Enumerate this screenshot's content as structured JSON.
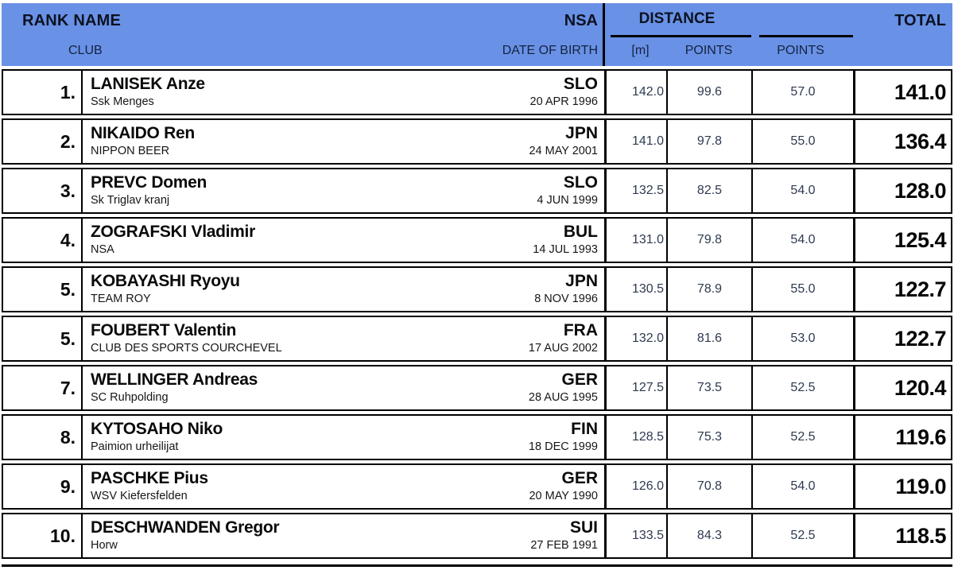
{
  "colors": {
    "header_bg": "#6991E6",
    "border": "#000000"
  },
  "header": {
    "rank_label": "RANK",
    "name_label": "NAME",
    "club_label": "CLUB",
    "nsa_label": "NSA",
    "dob_label": "DATE OF BIRTH",
    "distance_group_label": "DISTANCE",
    "distance_m_label": "[m]",
    "distance_points_label": "POINTS",
    "points2_label": "POINTS",
    "total_label": "TOTAL"
  },
  "rows": [
    {
      "rank": "1.",
      "name": "LANISEK Anze",
      "club": "Ssk Menges",
      "nsa": "SLO",
      "dob": "20 APR 1996",
      "m": "142.0",
      "pts1": "99.6",
      "pts2": "57.0",
      "total": "141.0"
    },
    {
      "rank": "2.",
      "name": "NIKAIDO Ren",
      "club": "NIPPON BEER",
      "nsa": "JPN",
      "dob": "24 MAY 2001",
      "m": "141.0",
      "pts1": "97.8",
      "pts2": "55.0",
      "total": "136.4"
    },
    {
      "rank": "3.",
      "name": "PREVC Domen",
      "club": "Sk Triglav kranj",
      "nsa": "SLO",
      "dob": "4 JUN 1999",
      "m": "132.5",
      "pts1": "82.5",
      "pts2": "54.0",
      "total": "128.0"
    },
    {
      "rank": "4.",
      "name": "ZOGRAFSKI Vladimir",
      "club": "NSA",
      "nsa": "BUL",
      "dob": "14 JUL 1993",
      "m": "131.0",
      "pts1": "79.8",
      "pts2": "54.0",
      "total": "125.4"
    },
    {
      "rank": "5.",
      "name": "KOBAYASHI Ryoyu",
      "club": "TEAM ROY",
      "nsa": "JPN",
      "dob": "8 NOV 1996",
      "m": "130.5",
      "pts1": "78.9",
      "pts2": "55.0",
      "total": "122.7"
    },
    {
      "rank": "5.",
      "name": "FOUBERT Valentin",
      "club": "CLUB DES SPORTS COURCHEVEL",
      "nsa": "FRA",
      "dob": "17 AUG 2002",
      "m": "132.0",
      "pts1": "81.6",
      "pts2": "53.0",
      "total": "122.7"
    },
    {
      "rank": "7.",
      "name": "WELLINGER Andreas",
      "club": "SC Ruhpolding",
      "nsa": "GER",
      "dob": "28 AUG 1995",
      "m": "127.5",
      "pts1": "73.5",
      "pts2": "52.5",
      "total": "120.4"
    },
    {
      "rank": "8.",
      "name": "KYTOSAHO Niko",
      "club": "Paimion urheilijat",
      "nsa": "FIN",
      "dob": "18 DEC 1999",
      "m": "128.5",
      "pts1": "75.3",
      "pts2": "52.5",
      "total": "119.6"
    },
    {
      "rank": "9.",
      "name": "PASCHKE Pius",
      "club": "WSV Kiefersfelden",
      "nsa": "GER",
      "dob": "20 MAY 1990",
      "m": "126.0",
      "pts1": "70.8",
      "pts2": "54.0",
      "total": "119.0"
    },
    {
      "rank": "10.",
      "name": "DESCHWANDEN Gregor",
      "club": "Horw",
      "nsa": "SUI",
      "dob": "27 FEB 1991",
      "m": "133.5",
      "pts1": "84.3",
      "pts2": "52.5",
      "total": "118.5"
    }
  ]
}
